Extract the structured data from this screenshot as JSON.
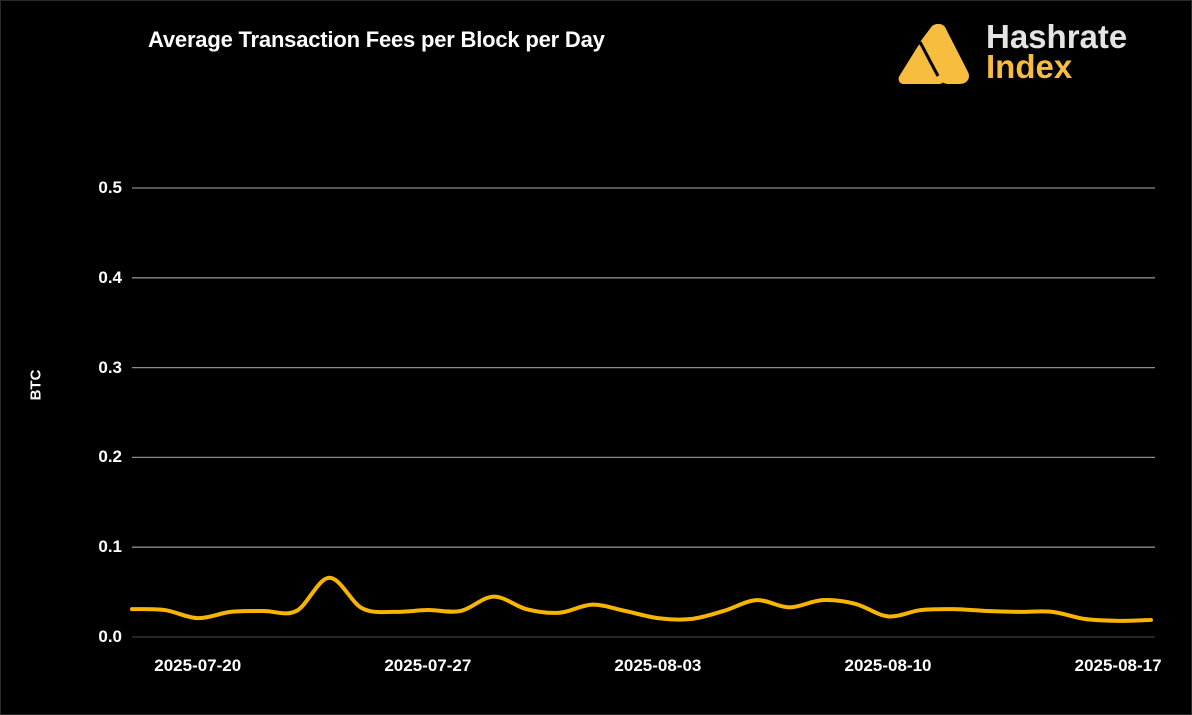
{
  "header": {
    "title": "Average Transaction Fees per Block per Day",
    "logo": {
      "line1": "Hashrate",
      "line2": "Index",
      "icon": "hashrate-index-logo-icon"
    }
  },
  "colors": {
    "background": "#000000",
    "line": "#f7b500",
    "grid": "#8a8a8a",
    "text": "#ffffff",
    "brand_accent": "#f7bd3e"
  },
  "chart_data": {
    "type": "line",
    "title": "Average Transaction Fees per Block per Day",
    "xlabel": "",
    "ylabel": "BTC",
    "ylim": [
      0,
      0.5
    ],
    "yticks": [
      "0.0",
      "0.1",
      "0.2",
      "0.3",
      "0.4",
      "0.5"
    ],
    "xticks": [
      "2025-07-20",
      "2025-07-27",
      "2025-08-03",
      "2025-08-10",
      "2025-08-17"
    ],
    "grid": "horizontal",
    "legend": "none",
    "x": [
      "2025-07-18",
      "2025-07-19",
      "2025-07-20",
      "2025-07-21",
      "2025-07-22",
      "2025-07-23",
      "2025-07-24",
      "2025-07-25",
      "2025-07-26",
      "2025-07-27",
      "2025-07-28",
      "2025-07-29",
      "2025-07-30",
      "2025-07-31",
      "2025-08-01",
      "2025-08-02",
      "2025-08-03",
      "2025-08-04",
      "2025-08-05",
      "2025-08-06",
      "2025-08-07",
      "2025-08-08",
      "2025-08-09",
      "2025-08-10",
      "2025-08-11",
      "2025-08-12",
      "2025-08-13",
      "2025-08-14",
      "2025-08-15",
      "2025-08-16",
      "2025-08-17",
      "2025-08-18"
    ],
    "series": [
      {
        "name": "Average Transaction Fees per Block (BTC)",
        "values": [
          0.031,
          0.03,
          0.021,
          0.028,
          0.029,
          0.029,
          0.066,
          0.032,
          0.028,
          0.03,
          0.029,
          0.045,
          0.031,
          0.027,
          0.036,
          0.029,
          0.021,
          0.02,
          0.029,
          0.041,
          0.033,
          0.041,
          0.037,
          0.023,
          0.03,
          0.031,
          0.029,
          0.028,
          0.028,
          0.02,
          0.018,
          0.019
        ]
      }
    ]
  }
}
